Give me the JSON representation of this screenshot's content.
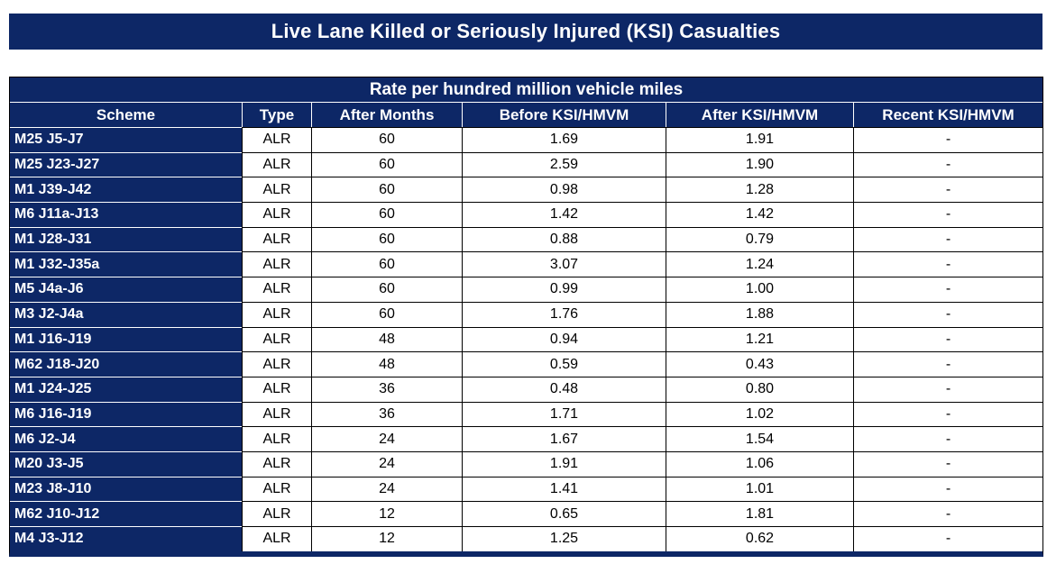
{
  "colors": {
    "navy": "#0D2766",
    "grid": "#000000",
    "text_light": "#FFFFFF",
    "text_dark": "#000000",
    "background": "#FFFFFF"
  },
  "title": "Live Lane Killed or Seriously Injured (KSI) Casualties",
  "table": {
    "subtitle": "Rate per hundred million vehicle miles",
    "columns": [
      "Scheme",
      "Type",
      "After Months",
      "Before KSI/HMVM",
      "After KSI/HMVM",
      "Recent KSI/HMVM"
    ],
    "rows": [
      [
        "M25 J5-J7",
        "ALR",
        "60",
        "1.69",
        "1.91",
        "-"
      ],
      [
        "M25 J23-J27",
        "ALR",
        "60",
        "2.59",
        "1.90",
        "-"
      ],
      [
        "M1 J39-J42",
        "ALR",
        "60",
        "0.98",
        "1.28",
        "-"
      ],
      [
        "M6 J11a-J13",
        "ALR",
        "60",
        "1.42",
        "1.42",
        "-"
      ],
      [
        "M1 J28-J31",
        "ALR",
        "60",
        "0.88",
        "0.79",
        "-"
      ],
      [
        "M1 J32-J35a",
        "ALR",
        "60",
        "3.07",
        "1.24",
        "-"
      ],
      [
        "M5 J4a-J6",
        "ALR",
        "60",
        "0.99",
        "1.00",
        "-"
      ],
      [
        "M3 J2-J4a",
        "ALR",
        "60",
        "1.76",
        "1.88",
        "-"
      ],
      [
        "M1 J16-J19",
        "ALR",
        "48",
        "0.94",
        "1.21",
        "-"
      ],
      [
        "M62 J18-J20",
        "ALR",
        "48",
        "0.59",
        "0.43",
        "-"
      ],
      [
        "M1 J24-J25",
        "ALR",
        "36",
        "0.48",
        "0.80",
        "-"
      ],
      [
        "M6 J16-J19",
        "ALR",
        "36",
        "1.71",
        "1.02",
        "-"
      ],
      [
        "M6 J2-J4",
        "ALR",
        "24",
        "1.67",
        "1.54",
        "-"
      ],
      [
        "M20 J3-J5",
        "ALR",
        "24",
        "1.91",
        "1.06",
        "-"
      ],
      [
        "M23 J8-J10",
        "ALR",
        "24",
        "1.41",
        "1.01",
        "-"
      ],
      [
        "M62 J10-J12",
        "ALR",
        "12",
        "0.65",
        "1.81",
        "-"
      ],
      [
        "M4 J3-J12",
        "ALR",
        "12",
        "1.25",
        "0.62",
        "-"
      ]
    ]
  },
  "chart_data": {
    "type": "table",
    "title": "Live Lane Killed or Seriously Injured (KSI) Casualties",
    "subtitle": "Rate per hundred million vehicle miles",
    "columns": [
      "Scheme",
      "Type",
      "After Months",
      "Before KSI/HMVM",
      "After KSI/HMVM",
      "Recent KSI/HMVM"
    ]
  }
}
